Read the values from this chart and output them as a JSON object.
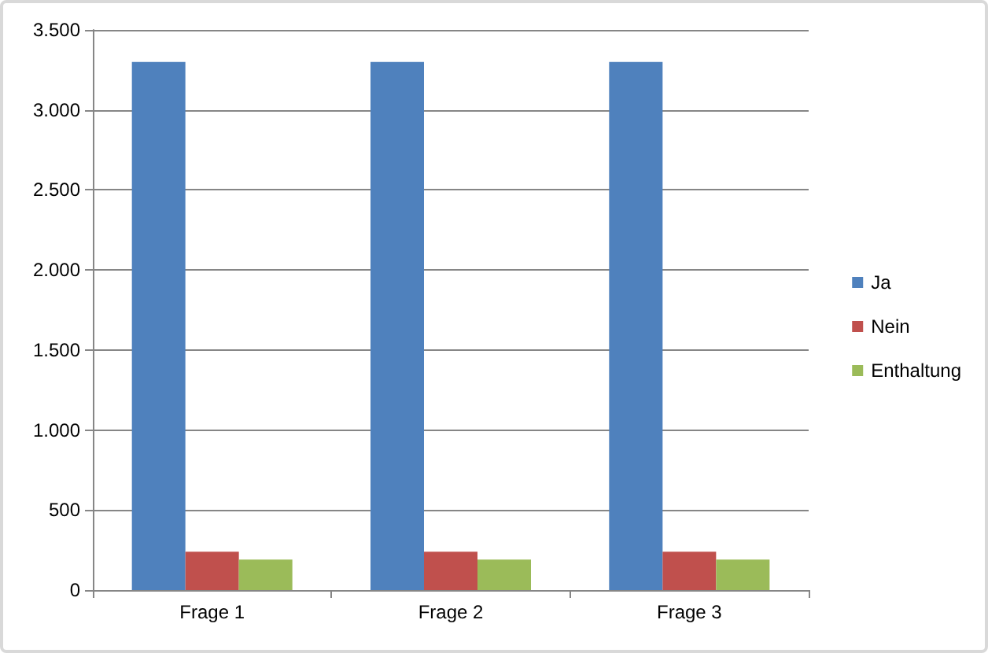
{
  "chart_data": {
    "type": "bar",
    "categories": [
      "Frage 1",
      "Frage 2",
      "Frage 3"
    ],
    "series": [
      {
        "name": "Ja",
        "color": "#4f81bd",
        "values": [
          3300,
          3300,
          3300
        ]
      },
      {
        "name": "Nein",
        "color": "#c0504d",
        "values": [
          240,
          240,
          240
        ]
      },
      {
        "name": "Enthaltung",
        "color": "#9bbb59",
        "values": [
          190,
          190,
          190
        ]
      }
    ],
    "ylim": [
      0,
      3500
    ],
    "yticks": [
      0,
      500,
      {
        "value": 1000,
        "label": "1.000"
      },
      {
        "value": 1500,
        "label": "1.500"
      },
      {
        "value": 2000,
        "label": "2.000"
      },
      {
        "value": 2500,
        "label": "2.500"
      },
      {
        "value": 3000,
        "label": "3.000"
      },
      {
        "value": 3500,
        "label": "3.500"
      }
    ],
    "grid": "y",
    "legend": "right"
  }
}
